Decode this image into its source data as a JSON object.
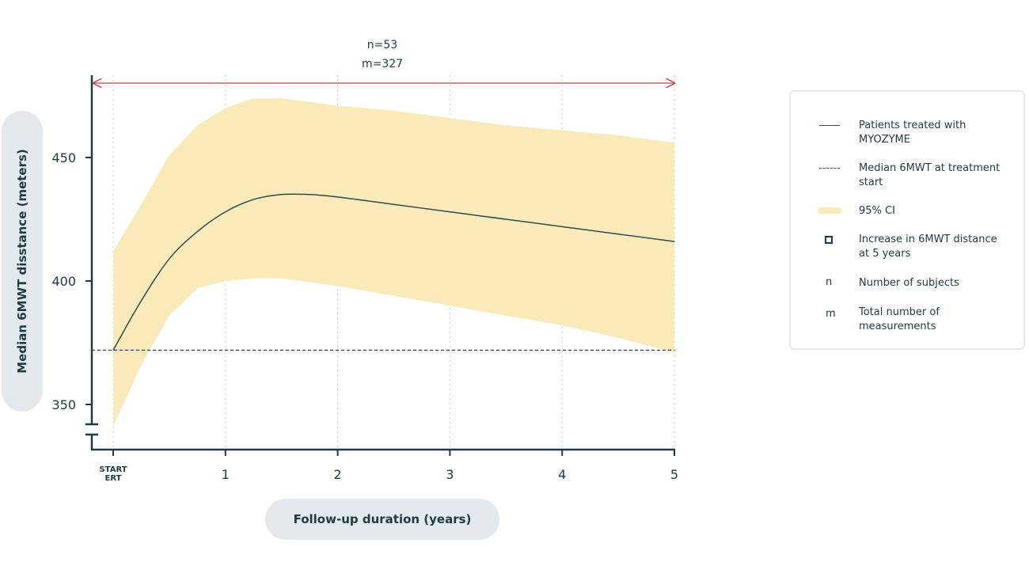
{
  "chart_data": {
    "type": "line",
    "title": "",
    "xlabel": "Follow-up duration (years)",
    "ylabel": "Median 6MWT disstance (meters)",
    "x_ticks": [
      {
        "value": 0,
        "label": "START\nERT"
      },
      {
        "value": 1,
        "label": "1"
      },
      {
        "value": 2,
        "label": "2"
      },
      {
        "value": 3,
        "label": "3"
      },
      {
        "value": 4,
        "label": "4"
      },
      {
        "value": 5,
        "label": "5"
      }
    ],
    "y_ticks": [
      350,
      400,
      450
    ],
    "xlim": [
      0,
      5
    ],
    "ylim": [
      340,
      480
    ],
    "grid": "vertical-dotted",
    "annotation": {
      "lines": [
        "n=53",
        "m=327"
      ],
      "x_range": [
        0,
        5
      ]
    },
    "baseline": {
      "name": "Median 6MWT at treatment start",
      "y": 372
    },
    "series": [
      {
        "name": "Patients treated with MYOZYME",
        "x": [
          0,
          0.25,
          0.5,
          0.75,
          1.0,
          1.25,
          1.5,
          1.75,
          2,
          2.5,
          3,
          3.5,
          4,
          4.5,
          5
        ],
        "y": [
          372,
          392,
          409,
          420,
          428,
          433,
          435,
          435,
          434,
          431,
          428,
          425,
          422,
          419,
          416
        ]
      }
    ],
    "ci_band": {
      "name": "95% CI",
      "x": [
        0,
        0.25,
        0.5,
        0.75,
        1.0,
        1.25,
        1.5,
        2,
        2.5,
        3,
        3.5,
        4,
        4.5,
        5
      ],
      "lower": [
        341,
        366,
        386,
        397,
        400,
        401,
        401,
        398,
        394,
        390,
        386,
        382,
        377,
        371
      ],
      "upper": [
        412,
        431,
        451,
        463,
        470,
        474,
        474,
        471,
        469,
        466,
        463,
        461,
        459,
        456
      ]
    },
    "legend_position": "right"
  },
  "legend": {
    "items": [
      {
        "symbol": "line",
        "label": "Patients treated with MYOZYME"
      },
      {
        "symbol": "dash",
        "label": "Median 6MWT at treatment start"
      },
      {
        "symbol": "band",
        "label": "95% CI"
      },
      {
        "symbol": "square",
        "label": "Increase in 6MWT distance at 5 years"
      },
      {
        "symbol": "letter",
        "letter": "n",
        "label": "Number of subjects"
      },
      {
        "symbol": "letter",
        "letter": "m",
        "label": "Total number of measurements"
      }
    ]
  },
  "colors": {
    "axis": "#1d3b45",
    "line": "#2e4a4e",
    "band": "#fbeab9",
    "arrow": "#b5474b",
    "grid": "#c8cdd0",
    "pill": "#e3e9ec"
  }
}
